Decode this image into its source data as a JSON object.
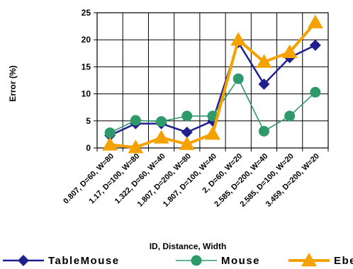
{
  "chart_data": {
    "type": "line",
    "title": "",
    "xlabel": "ID, Distance, Width",
    "ylabel": "Error (%)",
    "ylim": [
      0,
      25
    ],
    "yticks": [
      0,
      5,
      10,
      15,
      20,
      25
    ],
    "grid": true,
    "legend_position": "bottom",
    "categories": [
      "0.807, D=60, W=80",
      "1.17, D=100, W=80",
      "1.322, D=60, W=40",
      "1.807, D=200, W=80",
      "1.807, D=100, W=40",
      "2, D=60, W=20",
      "2.585, D=200, W=40",
      "2.585, D=100, W=20",
      "3.459, D=200, W=20"
    ],
    "series": [
      {
        "name": "TableMouse",
        "marker": "diamond",
        "color": "#1f1f8f",
        "values": [
          2.3,
          4.5,
          4.5,
          2.9,
          5.0,
          19.5,
          11.8,
          16.7,
          19.0
        ]
      },
      {
        "name": "Mouse",
        "marker": "circle",
        "color": "#2e9a6a",
        "values": [
          2.8,
          5.1,
          4.9,
          5.9,
          5.9,
          12.8,
          3.1,
          5.9,
          10.3
        ]
      },
      {
        "name": "Ebeam",
        "marker": "triangle",
        "color": "#f5a200",
        "values": [
          0.6,
          0.1,
          1.9,
          0.7,
          2.6,
          20.0,
          15.9,
          17.7,
          23.2
        ]
      }
    ]
  }
}
